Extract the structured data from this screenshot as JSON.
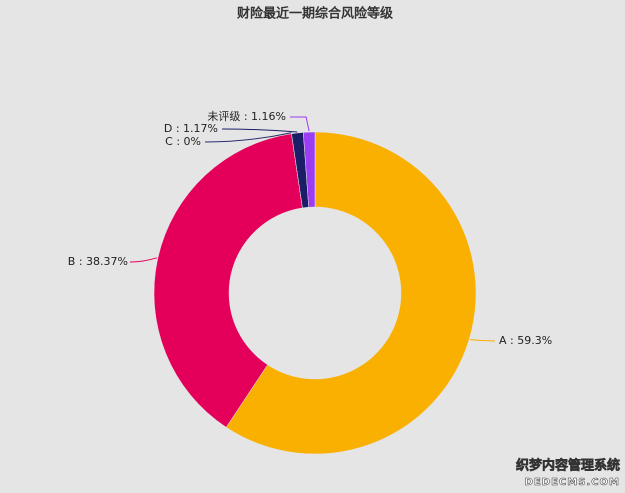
{
  "chart_data": {
    "type": "donut",
    "title": "财险最近一期综合风险等级",
    "categories": [
      "A",
      "B",
      "C",
      "D",
      "未评级"
    ],
    "values": [
      59.3,
      38.37,
      0,
      1.17,
      1.16
    ],
    "value_labels": [
      "A : 59.3%",
      "B : 38.37%",
      "C : 0%",
      "D : 1.17%",
      "未评级 : 1.16%"
    ],
    "colors": [
      "#f9b000",
      "#e4005a",
      "#2b2b6e",
      "#1b1e66",
      "#9b3df2"
    ]
  },
  "watermark": {
    "line1": "织梦内容管理系统",
    "line2": "DEDECMS.COM"
  }
}
